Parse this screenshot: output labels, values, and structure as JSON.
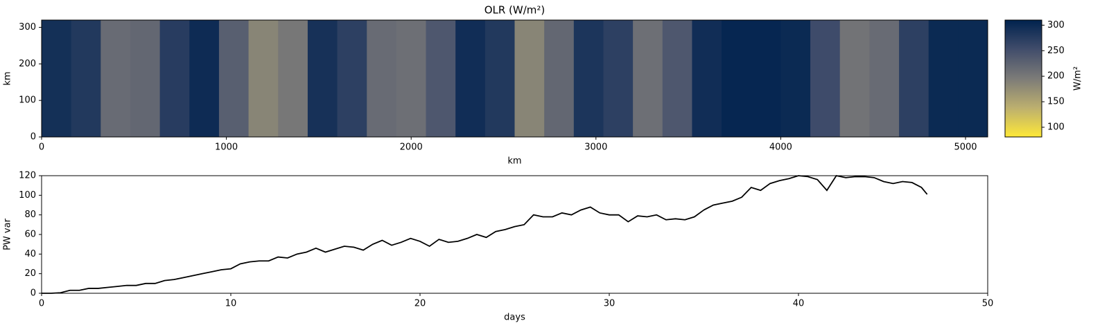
{
  "chart_data": [
    {
      "type": "heatmap",
      "title": "OLR (W/m²)",
      "xlabel": "km",
      "ylabel": "km",
      "colorbar_label": "W/m²",
      "x_bins": [
        0,
        160,
        320,
        480,
        640,
        800,
        960,
        1120,
        1280,
        1440,
        1600,
        1760,
        1920,
        2080,
        2240,
        2400,
        2560,
        2720,
        2880,
        3040,
        3200,
        3360,
        3520,
        3680,
        3840,
        4000,
        4160,
        4320,
        4480,
        4640,
        4800,
        4960,
        5120
      ],
      "values": [
        292,
        280,
        215,
        220,
        275,
        298,
        230,
        185,
        200,
        290,
        270,
        215,
        210,
        240,
        295,
        280,
        185,
        220,
        285,
        270,
        210,
        240,
        295,
        305,
        305,
        300,
        255,
        205,
        215,
        270,
        300,
        300
      ],
      "colormap": [
        "#fee838",
        "#bcaf6f",
        "#7c7b78",
        "#414d6b",
        "#00224e"
      ],
      "clim": [
        81,
        310
      ],
      "cticks": [
        100,
        150,
        200,
        250,
        300
      ],
      "xlim": [
        0,
        5120
      ],
      "xticks": [
        0,
        1000,
        2000,
        3000,
        4000,
        5000
      ],
      "ylim": [
        0,
        320
      ],
      "yticks": [
        0,
        100,
        200,
        300
      ]
    },
    {
      "type": "line",
      "xlabel": "days",
      "ylabel": "PW var",
      "color": "#000000",
      "x": [
        0,
        0.5,
        1,
        1.5,
        2,
        2.5,
        3,
        3.5,
        4,
        4.5,
        5,
        5.5,
        6,
        6.5,
        7,
        7.5,
        8,
        8.5,
        9,
        9.5,
        10,
        10.5,
        11,
        11.5,
        12,
        12.5,
        13,
        13.5,
        14,
        14.5,
        15,
        15.5,
        16,
        16.5,
        17,
        17.5,
        18,
        18.5,
        19,
        19.5,
        20,
        20.5,
        21,
        21.5,
        22,
        22.5,
        23,
        23.5,
        24,
        24.5,
        25,
        25.5,
        26,
        26.5,
        27,
        27.5,
        28,
        28.5,
        29,
        29.5,
        30,
        30.5,
        31,
        31.5,
        32,
        32.5,
        33,
        33.5,
        34,
        34.5,
        35,
        35.5,
        36,
        36.5,
        37,
        37.5,
        38,
        38.5,
        39,
        39.5,
        40,
        40.5,
        41,
        41.5,
        42,
        42.5,
        43,
        43.5,
        44,
        44.5,
        45,
        45.5,
        46,
        46.5,
        46.8
      ],
      "values": [
        0,
        0,
        0.5,
        3,
        3,
        5,
        5,
        6,
        7,
        8,
        8,
        10,
        10,
        13,
        14,
        16,
        18,
        20,
        22,
        24,
        25,
        30,
        32,
        33,
        33,
        37,
        36,
        40,
        42,
        46,
        42,
        45,
        48,
        47,
        44,
        50,
        54,
        49,
        52,
        56,
        53,
        48,
        55,
        52,
        53,
        56,
        60,
        57,
        63,
        65,
        68,
        70,
        80,
        78,
        78,
        82,
        80,
        85,
        88,
        82,
        80,
        80,
        73,
        79,
        78,
        80,
        75,
        76,
        75,
        78,
        85,
        90,
        92,
        94,
        98,
        108,
        105,
        112,
        115,
        117,
        120,
        119,
        116,
        105,
        120,
        118,
        119,
        119,
        118,
        114,
        112,
        114,
        113,
        108,
        101
      ],
      "xlim": [
        0,
        50
      ],
      "xticks": [
        0,
        10,
        20,
        30,
        40,
        50
      ],
      "ylim": [
        0,
        120
      ],
      "yticks": [
        0,
        20,
        40,
        60,
        80,
        100,
        120
      ]
    }
  ]
}
